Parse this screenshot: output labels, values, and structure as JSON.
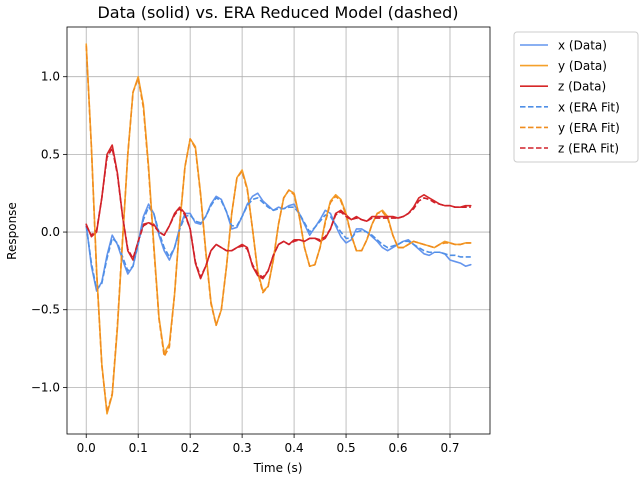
{
  "chart_data": {
    "type": "line",
    "title": "Data (solid) vs. ERA Reduced Model (dashed)",
    "xlabel": "Time (s)",
    "ylabel": "Response",
    "xlim": [
      -0.037,
      0.777
    ],
    "ylim": [
      -1.3,
      1.32
    ],
    "xticks": [
      0.0,
      0.1,
      0.2,
      0.3,
      0.4,
      0.5,
      0.6,
      0.7
    ],
    "xtick_labels": [
      "0.0",
      "0.1",
      "0.2",
      "0.3",
      "0.4",
      "0.5",
      "0.6",
      "0.7"
    ],
    "yticks": [
      -1.0,
      -0.5,
      0.0,
      0.5,
      1.0
    ],
    "ytick_labels": [
      "−1.0",
      "−0.5",
      "0.0",
      "0.5",
      "1.0"
    ],
    "grid": true,
    "legend_position": "outside-upper-right",
    "series": [
      {
        "name": "x (Data)",
        "color": "#6495ED",
        "dash": false,
        "x": [
          0.0,
          0.01,
          0.02,
          0.03,
          0.04,
          0.05,
          0.06,
          0.07,
          0.08,
          0.09,
          0.1,
          0.11,
          0.12,
          0.13,
          0.14,
          0.15,
          0.16,
          0.17,
          0.18,
          0.19,
          0.2,
          0.21,
          0.22,
          0.23,
          0.24,
          0.25,
          0.26,
          0.27,
          0.28,
          0.29,
          0.3,
          0.31,
          0.32,
          0.33,
          0.34,
          0.35,
          0.36,
          0.37,
          0.38,
          0.39,
          0.4,
          0.41,
          0.42,
          0.43,
          0.44,
          0.45,
          0.46,
          0.47,
          0.48,
          0.49,
          0.5,
          0.51,
          0.52,
          0.53,
          0.54,
          0.55,
          0.56,
          0.57,
          0.58,
          0.59,
          0.6,
          0.61,
          0.62,
          0.63,
          0.64,
          0.65,
          0.66,
          0.67,
          0.68,
          0.69,
          0.7,
          0.71,
          0.72,
          0.73,
          0.74
        ],
        "y": [
          0.05,
          -0.22,
          -0.38,
          -0.32,
          -0.15,
          -0.02,
          -0.08,
          -0.18,
          -0.27,
          -0.22,
          -0.07,
          0.1,
          0.18,
          0.12,
          -0.02,
          -0.12,
          -0.18,
          -0.1,
          0.03,
          0.12,
          0.12,
          0.06,
          0.05,
          0.1,
          0.18,
          0.23,
          0.21,
          0.13,
          0.02,
          0.03,
          0.1,
          0.18,
          0.23,
          0.25,
          0.2,
          0.17,
          0.14,
          0.16,
          0.15,
          0.17,
          0.18,
          0.12,
          0.05,
          -0.02,
          0.03,
          0.08,
          0.14,
          0.12,
          0.04,
          -0.03,
          -0.07,
          -0.05,
          0.02,
          0.02,
          0.0,
          -0.03,
          -0.06,
          -0.1,
          -0.12,
          -0.1,
          -0.08,
          -0.06,
          -0.05,
          -0.08,
          -0.11,
          -0.14,
          -0.15,
          -0.13,
          -0.13,
          -0.14,
          -0.18,
          -0.19,
          -0.2,
          -0.22,
          -0.21
        ]
      },
      {
        "name": "y (Data)",
        "color": "#F5A02A",
        "dash": false,
        "x": [
          0.0,
          0.01,
          0.02,
          0.03,
          0.04,
          0.05,
          0.06,
          0.07,
          0.08,
          0.09,
          0.1,
          0.11,
          0.12,
          0.13,
          0.14,
          0.15,
          0.16,
          0.17,
          0.18,
          0.19,
          0.2,
          0.21,
          0.22,
          0.23,
          0.24,
          0.25,
          0.26,
          0.27,
          0.28,
          0.29,
          0.3,
          0.31,
          0.32,
          0.33,
          0.34,
          0.35,
          0.36,
          0.37,
          0.38,
          0.39,
          0.4,
          0.41,
          0.42,
          0.43,
          0.44,
          0.45,
          0.46,
          0.47,
          0.48,
          0.49,
          0.5,
          0.51,
          0.52,
          0.53,
          0.54,
          0.55,
          0.56,
          0.57,
          0.58,
          0.59,
          0.6,
          0.61,
          0.62,
          0.63,
          0.64,
          0.65,
          0.66,
          0.67,
          0.68,
          0.69,
          0.7,
          0.71,
          0.72,
          0.73,
          0.74
        ],
        "y": [
          1.21,
          0.55,
          -0.25,
          -0.85,
          -1.17,
          -1.05,
          -0.62,
          -0.05,
          0.5,
          0.9,
          1.0,
          0.82,
          0.42,
          -0.08,
          -0.55,
          -0.78,
          -0.72,
          -0.4,
          0.05,
          0.42,
          0.6,
          0.55,
          0.25,
          -0.12,
          -0.45,
          -0.6,
          -0.5,
          -0.22,
          0.12,
          0.35,
          0.4,
          0.28,
          0.02,
          -0.25,
          -0.38,
          -0.35,
          -0.18,
          0.05,
          0.22,
          0.27,
          0.25,
          0.1,
          -0.1,
          -0.22,
          -0.21,
          -0.1,
          0.07,
          0.2,
          0.24,
          0.21,
          0.12,
          -0.02,
          -0.12,
          -0.12,
          -0.05,
          0.05,
          0.12,
          0.14,
          0.1,
          -0.02,
          -0.1,
          -0.1,
          -0.08,
          -0.06,
          -0.07,
          -0.08,
          -0.09,
          -0.1,
          -0.08,
          -0.06,
          -0.07,
          -0.08,
          -0.08,
          -0.07,
          -0.07
        ]
      },
      {
        "name": "z (Data)",
        "color": "#D62728",
        "dash": false,
        "x": [
          0.0,
          0.01,
          0.02,
          0.03,
          0.04,
          0.05,
          0.06,
          0.07,
          0.08,
          0.09,
          0.1,
          0.11,
          0.12,
          0.13,
          0.14,
          0.15,
          0.16,
          0.17,
          0.18,
          0.19,
          0.2,
          0.21,
          0.22,
          0.23,
          0.24,
          0.25,
          0.26,
          0.27,
          0.28,
          0.29,
          0.3,
          0.31,
          0.32,
          0.33,
          0.34,
          0.35,
          0.36,
          0.37,
          0.38,
          0.39,
          0.4,
          0.41,
          0.42,
          0.43,
          0.44,
          0.45,
          0.46,
          0.47,
          0.48,
          0.49,
          0.5,
          0.51,
          0.52,
          0.53,
          0.54,
          0.55,
          0.56,
          0.57,
          0.58,
          0.59,
          0.6,
          0.61,
          0.62,
          0.63,
          0.64,
          0.65,
          0.66,
          0.67,
          0.68,
          0.69,
          0.7,
          0.71,
          0.72,
          0.73,
          0.74
        ],
        "y": [
          0.05,
          -0.03,
          0.0,
          0.22,
          0.5,
          0.56,
          0.38,
          0.1,
          -0.12,
          -0.18,
          -0.06,
          0.05,
          0.06,
          0.05,
          0.0,
          -0.02,
          0.04,
          0.12,
          0.16,
          0.12,
          0.02,
          -0.2,
          -0.3,
          -0.22,
          -0.12,
          -0.08,
          -0.1,
          -0.12,
          -0.12,
          -0.1,
          -0.08,
          -0.1,
          -0.22,
          -0.28,
          -0.3,
          -0.25,
          -0.15,
          -0.08,
          -0.06,
          -0.08,
          -0.05,
          -0.05,
          -0.06,
          -0.04,
          -0.04,
          -0.06,
          -0.04,
          0.02,
          0.12,
          0.14,
          0.11,
          0.08,
          0.1,
          0.08,
          0.07,
          0.1,
          0.1,
          0.1,
          0.1,
          0.1,
          0.09,
          0.1,
          0.12,
          0.16,
          0.22,
          0.24,
          0.22,
          0.2,
          0.18,
          0.17,
          0.17,
          0.16,
          0.16,
          0.17,
          0.17
        ]
      },
      {
        "name": "x (ERA Fit)",
        "color": "#4F8FE6",
        "dash": true,
        "x": [
          0.0,
          0.01,
          0.02,
          0.03,
          0.04,
          0.05,
          0.06,
          0.07,
          0.08,
          0.09,
          0.1,
          0.11,
          0.12,
          0.13,
          0.14,
          0.15,
          0.16,
          0.17,
          0.18,
          0.19,
          0.2,
          0.21,
          0.22,
          0.23,
          0.24,
          0.25,
          0.26,
          0.27,
          0.28,
          0.29,
          0.3,
          0.31,
          0.32,
          0.33,
          0.34,
          0.35,
          0.36,
          0.37,
          0.38,
          0.39,
          0.4,
          0.41,
          0.42,
          0.43,
          0.44,
          0.45,
          0.46,
          0.47,
          0.48,
          0.49,
          0.5,
          0.51,
          0.52,
          0.53,
          0.54,
          0.55,
          0.56,
          0.57,
          0.58,
          0.59,
          0.6,
          0.61,
          0.62,
          0.63,
          0.64,
          0.65,
          0.66,
          0.67,
          0.68,
          0.69,
          0.7,
          0.71,
          0.72,
          0.73,
          0.74
        ],
        "y": [
          0.04,
          -0.2,
          -0.37,
          -0.33,
          -0.17,
          -0.04,
          -0.07,
          -0.16,
          -0.25,
          -0.22,
          -0.08,
          0.08,
          0.16,
          0.12,
          0.0,
          -0.1,
          -0.16,
          -0.1,
          0.02,
          0.1,
          0.11,
          0.07,
          0.06,
          0.1,
          0.17,
          0.22,
          0.2,
          0.13,
          0.04,
          0.04,
          0.1,
          0.17,
          0.21,
          0.22,
          0.19,
          0.16,
          0.14,
          0.15,
          0.15,
          0.16,
          0.16,
          0.12,
          0.06,
          0.0,
          0.03,
          0.07,
          0.11,
          0.1,
          0.05,
          0.0,
          -0.04,
          -0.04,
          0.0,
          0.01,
          0.0,
          -0.02,
          -0.05,
          -0.08,
          -0.1,
          -0.09,
          -0.08,
          -0.06,
          -0.06,
          -0.08,
          -0.1,
          -0.12,
          -0.13,
          -0.13,
          -0.13,
          -0.14,
          -0.15,
          -0.15,
          -0.16,
          -0.16,
          -0.16
        ]
      },
      {
        "name": "y (ERA Fit)",
        "color": "#F08C1E",
        "dash": true,
        "x": [
          0.0,
          0.01,
          0.02,
          0.03,
          0.04,
          0.05,
          0.06,
          0.07,
          0.08,
          0.09,
          0.1,
          0.11,
          0.12,
          0.13,
          0.14,
          0.15,
          0.16,
          0.17,
          0.18,
          0.19,
          0.2,
          0.21,
          0.22,
          0.23,
          0.24,
          0.25,
          0.26,
          0.27,
          0.28,
          0.29,
          0.3,
          0.31,
          0.32,
          0.33,
          0.34,
          0.35,
          0.36,
          0.37,
          0.38,
          0.39,
          0.4,
          0.41,
          0.42,
          0.43,
          0.44,
          0.45,
          0.46,
          0.47,
          0.48,
          0.49,
          0.5,
          0.51,
          0.52,
          0.53,
          0.54,
          0.55,
          0.56,
          0.57,
          0.58,
          0.59,
          0.6,
          0.61,
          0.62,
          0.63,
          0.64,
          0.65,
          0.66,
          0.67,
          0.68,
          0.69,
          0.7,
          0.71,
          0.72,
          0.73,
          0.74
        ],
        "y": [
          1.2,
          0.54,
          -0.26,
          -0.86,
          -1.16,
          -1.04,
          -0.6,
          -0.04,
          0.5,
          0.9,
          0.99,
          0.8,
          0.4,
          -0.1,
          -0.56,
          -0.8,
          -0.74,
          -0.4,
          0.06,
          0.42,
          0.6,
          0.54,
          0.24,
          -0.13,
          -0.46,
          -0.6,
          -0.5,
          -0.22,
          0.12,
          0.35,
          0.39,
          0.27,
          0.02,
          -0.26,
          -0.39,
          -0.35,
          -0.18,
          0.05,
          0.22,
          0.27,
          0.24,
          0.1,
          -0.1,
          -0.22,
          -0.21,
          -0.1,
          0.06,
          0.19,
          0.23,
          0.2,
          0.11,
          -0.02,
          -0.12,
          -0.12,
          -0.05,
          0.05,
          0.12,
          0.13,
          0.09,
          -0.02,
          -0.1,
          -0.1,
          -0.08,
          -0.06,
          -0.07,
          -0.08,
          -0.09,
          -0.1,
          -0.08,
          -0.07,
          -0.07,
          -0.08,
          -0.08,
          -0.07,
          -0.07
        ]
      },
      {
        "name": "z (ERA Fit)",
        "color": "#D0202A",
        "dash": true,
        "x": [
          0.0,
          0.01,
          0.02,
          0.03,
          0.04,
          0.05,
          0.06,
          0.07,
          0.08,
          0.09,
          0.1,
          0.11,
          0.12,
          0.13,
          0.14,
          0.15,
          0.16,
          0.17,
          0.18,
          0.19,
          0.2,
          0.21,
          0.22,
          0.23,
          0.24,
          0.25,
          0.26,
          0.27,
          0.28,
          0.29,
          0.3,
          0.31,
          0.32,
          0.33,
          0.34,
          0.35,
          0.36,
          0.37,
          0.38,
          0.39,
          0.4,
          0.41,
          0.42,
          0.43,
          0.44,
          0.45,
          0.46,
          0.47,
          0.48,
          0.49,
          0.5,
          0.51,
          0.52,
          0.53,
          0.54,
          0.55,
          0.56,
          0.57,
          0.58,
          0.59,
          0.6,
          0.61,
          0.62,
          0.63,
          0.64,
          0.65,
          0.66,
          0.67,
          0.68,
          0.69,
          0.7,
          0.71,
          0.72,
          0.73,
          0.74
        ],
        "y": [
          0.04,
          -0.02,
          0.01,
          0.22,
          0.48,
          0.54,
          0.37,
          0.1,
          -0.11,
          -0.17,
          -0.06,
          0.04,
          0.06,
          0.04,
          0.0,
          -0.02,
          0.04,
          0.11,
          0.15,
          0.11,
          0.02,
          -0.19,
          -0.29,
          -0.22,
          -0.12,
          -0.08,
          -0.1,
          -0.12,
          -0.12,
          -0.1,
          -0.09,
          -0.11,
          -0.21,
          -0.27,
          -0.29,
          -0.25,
          -0.15,
          -0.08,
          -0.06,
          -0.08,
          -0.06,
          -0.05,
          -0.06,
          -0.04,
          -0.04,
          -0.05,
          -0.03,
          0.02,
          0.11,
          0.13,
          0.1,
          0.08,
          0.09,
          0.08,
          0.07,
          0.09,
          0.09,
          0.09,
          0.09,
          0.09,
          0.09,
          0.1,
          0.12,
          0.15,
          0.2,
          0.22,
          0.21,
          0.19,
          0.18,
          0.17,
          0.17,
          0.16,
          0.16,
          0.16,
          0.16
        ]
      }
    ]
  }
}
